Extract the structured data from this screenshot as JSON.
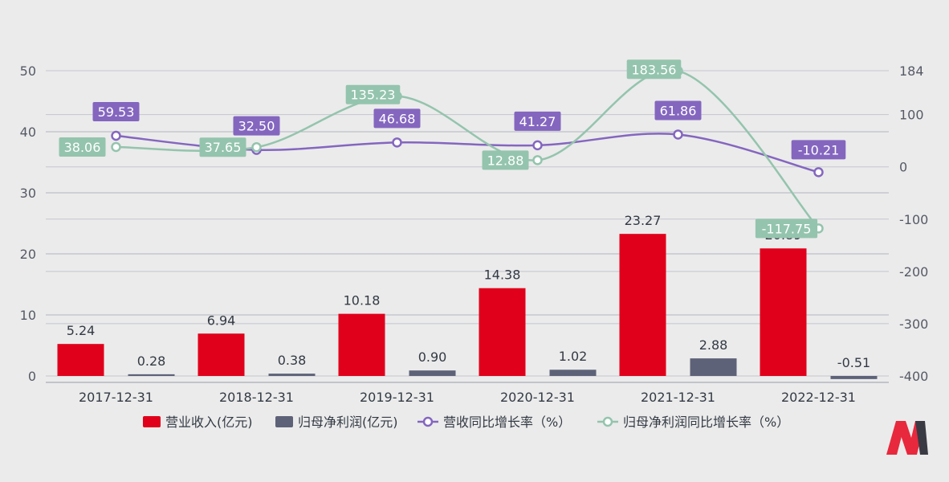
{
  "chart_data": {
    "type": "bar",
    "categories": [
      "2017-12-31",
      "2018-12-31",
      "2019-12-31",
      "2020-12-31",
      "2021-12-31",
      "2022-12-31"
    ],
    "series": [
      {
        "name": "营业收入(亿元)",
        "type": "bar",
        "axis": "left",
        "color": "#e0001b",
        "values": [
          5.24,
          6.94,
          10.18,
          14.38,
          23.27,
          20.89
        ],
        "labels": [
          "5.24",
          "6.94",
          "10.18",
          "14.38",
          "23.27",
          "20.89"
        ]
      },
      {
        "name": "归母净利润(亿元)",
        "type": "bar",
        "axis": "left",
        "color": "#5e6278",
        "values": [
          0.28,
          0.38,
          0.9,
          1.02,
          2.88,
          -0.51
        ],
        "labels": [
          "0.28",
          "0.38",
          "0.90",
          "1.02",
          "2.88",
          "-0.51"
        ]
      },
      {
        "name": "营收同比增长率（%）",
        "type": "line",
        "axis": "right",
        "color": "#8466bf",
        "values": [
          59.53,
          32.5,
          46.68,
          41.27,
          61.86,
          -10.21
        ],
        "labels": [
          "59.53",
          "32.50",
          "46.68",
          "41.27",
          "61.86",
          "-10.21"
        ]
      },
      {
        "name": "归母净利润同比增长率（%）",
        "type": "line",
        "axis": "right",
        "color": "#94c4ad",
        "values": [
          38.06,
          37.65,
          135.23,
          12.88,
          183.56,
          -117.75
        ],
        "labels": [
          "38.06",
          "37.65",
          "135.23",
          "12.88",
          "183.56",
          "-117.75"
        ]
      }
    ],
    "left_axis": {
      "ylim": [
        0,
        50
      ],
      "ticks": [
        "0",
        "10",
        "20",
        "30",
        "40",
        "50"
      ]
    },
    "right_axis": {
      "ylim": [
        -400,
        184
      ],
      "ticks": [
        "-400",
        "-300",
        "-200",
        "-100",
        "0",
        "100",
        "184"
      ]
    },
    "grid": true,
    "legend_position": "bottom"
  },
  "logo": {
    "name": "brand-logo"
  }
}
